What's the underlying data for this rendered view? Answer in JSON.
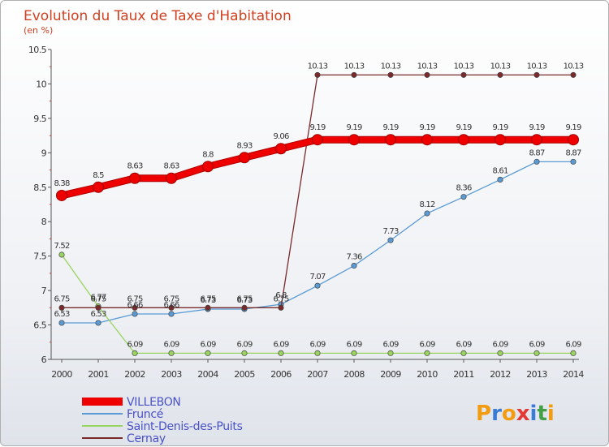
{
  "chart_data": {
    "type": "line",
    "title": "Evolution du Taux de Taxe d'Habitation",
    "subtitle": "(en %)",
    "x": [
      "2000",
      "2001",
      "2002",
      "2003",
      "2004",
      "2005",
      "2006",
      "2007",
      "2008",
      "2009",
      "2010",
      "2011",
      "2012",
      "2013",
      "2014"
    ],
    "ylim": [
      6,
      10.5
    ],
    "yticks": [
      "6",
      "6.5",
      "7",
      "7.5",
      "8",
      "8.5",
      "9",
      "9.5",
      "10",
      "10.5"
    ],
    "grid": false,
    "legend_position": "bottom-left",
    "series": [
      {
        "name": "VILLEBON",
        "color": "#ee0000",
        "emphasis": true,
        "values": [
          8.38,
          8.5,
          8.63,
          8.63,
          8.8,
          8.93,
          9.06,
          9.19,
          9.19,
          9.19,
          9.19,
          9.19,
          9.19,
          9.19,
          9.19
        ],
        "labels": [
          "8.38",
          "8.5",
          "8.63",
          "8.63",
          "8.8",
          "8.93",
          "9.06",
          "9.19",
          "9.19",
          "9.19",
          "9.19",
          "9.19",
          "9.19",
          "9.19",
          "9.19"
        ]
      },
      {
        "name": "Fruncé",
        "color": "#5b9bd5",
        "emphasis": false,
        "values": [
          6.53,
          6.53,
          6.66,
          6.66,
          6.73,
          6.73,
          6.8,
          7.07,
          7.36,
          7.73,
          8.12,
          8.36,
          8.61,
          8.87,
          8.87
        ],
        "labels": [
          "6.53",
          "6.53",
          "6.66",
          "6.66",
          "6.73",
          "6.73",
          "6.8",
          "7.07",
          "7.36",
          "7.73",
          "8.12",
          "8.36",
          "8.61",
          "8.87",
          "8.87"
        ]
      },
      {
        "name": "Saint-Denis-des-Puits",
        "color": "#9ad460",
        "emphasis": false,
        "values": [
          7.52,
          6.77,
          6.09,
          6.09,
          6.09,
          6.09,
          6.09,
          6.09,
          6.09,
          6.09,
          6.09,
          6.09,
          6.09,
          6.09,
          6.09
        ],
        "labels": [
          "7.52",
          "6.77",
          "6.09",
          "6.09",
          "6.09",
          "6.09",
          "6.09",
          "6.09",
          "6.09",
          "6.09",
          "6.09",
          "6.09",
          "6.09",
          "6.09",
          "6.09"
        ]
      },
      {
        "name": "Cernay",
        "color": "#7a2a2a",
        "emphasis": false,
        "values": [
          6.75,
          6.75,
          6.75,
          6.75,
          6.75,
          6.75,
          6.75,
          10.13,
          10.13,
          10.13,
          10.13,
          10.13,
          10.13,
          10.13,
          10.13
        ],
        "labels": [
          "6.75",
          "6.75",
          "6.75",
          "6.75",
          "6.75",
          "6.75",
          "6.75",
          "10.13",
          "10.13",
          "10.13",
          "10.13",
          "10.13",
          "10.13",
          "10.13",
          "10.13"
        ]
      }
    ]
  },
  "logo": {
    "text": "Proxiti",
    "letter_colors": [
      "#f39c12",
      "#3a7bd5",
      "#f39c12",
      "#e53935",
      "#3a7bd5",
      "#43a047",
      "#f39c12"
    ]
  }
}
